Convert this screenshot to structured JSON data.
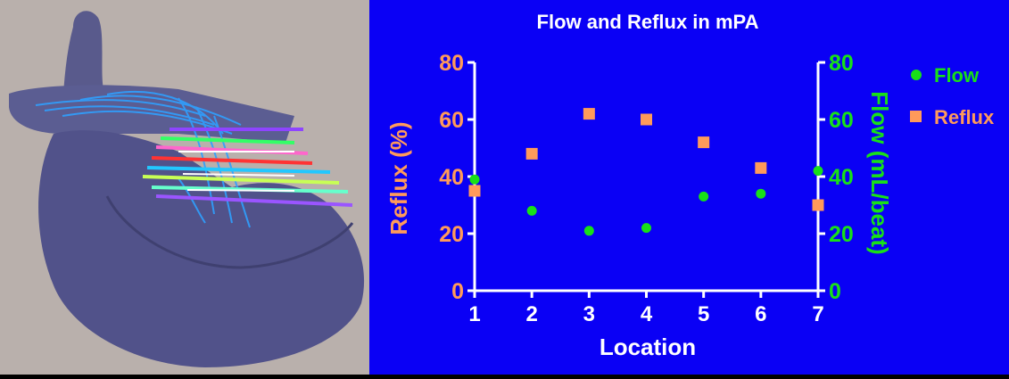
{
  "chart_data": {
    "type": "scatter",
    "title": "Flow and Reflux in mPA",
    "xlabel": "Location",
    "ylabel_left": "Reflux (%)",
    "ylabel_right": "Flow (mL/beat)",
    "x": [
      1,
      2,
      3,
      4,
      5,
      6,
      7
    ],
    "xticks": [
      "1",
      "2",
      "3",
      "4",
      "5",
      "6",
      "7"
    ],
    "xlim": [
      1,
      7
    ],
    "ylim_left": [
      0,
      80
    ],
    "ylim_right": [
      0,
      80
    ],
    "yticks_left": [
      "0",
      "20",
      "40",
      "60",
      "80"
    ],
    "yticks_right": [
      "0",
      "20",
      "40",
      "60",
      "80"
    ],
    "series": [
      {
        "name": "Flow",
        "axis": "right",
        "marker": "circle",
        "color": "#18e018",
        "values": [
          39,
          28,
          21,
          22,
          33,
          34,
          42
        ]
      },
      {
        "name": "Reflux",
        "axis": "left",
        "marker": "square",
        "color": "#ff9a5a",
        "values": [
          35,
          48,
          62,
          60,
          52,
          43,
          30
        ]
      }
    ],
    "legend": "top-right",
    "grid": false
  },
  "colors": {
    "background": "#0a00f5",
    "axis": "#ffffff",
    "title": "#ffffff",
    "left_axis_text": "#ff9a5a",
    "right_axis_text": "#18e018",
    "left_panel": "#b9b0ac"
  },
  "left_panel": {
    "image": "3D rendering of heart with blue streamlines and colored planes"
  }
}
